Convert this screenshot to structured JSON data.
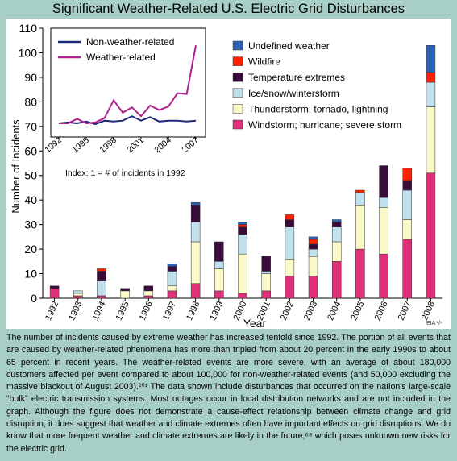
{
  "title": "Significant Weather-Related U.S. Electric Grid Disturbances",
  "caption": "The number of incidents caused by extreme weather has increased tenfold since 1992. The portion of all events that are caused by weather-related phenomena has more than tripled from about 20 percent in the early 1990s to about 65 percent in recent years. The weather-related events are more severe, with an average of about 180,000 customers affected per event compared to about 100,000 for non-weather-related events (and 50,000 excluding the massive blackout of August 2003).²⁰¹ The data shown include disturbances that occurred on the nation's large-scale “bulk” electric transmission systems. Most outages occur in local distribution networks and are not included in the graph. Although the figure does not demonstrate a cause-effect relationship between climate change and grid disruption, it does suggest that weather and climate extremes often have important effects on grid disruptions. We do know that more frequent weather and climate extremes are likely in the future,⁶⁸ which poses unknown new risks for the electric grid.",
  "chart_data": [
    {
      "type": "bar",
      "stacked": true,
      "title": "Significant Weather-Related U.S. Electric Grid Disturbances",
      "xlabel": "Year",
      "ylabel": "Number of Incidents",
      "ylim": [
        0,
        110
      ],
      "yticks": [
        "0",
        "10",
        "20",
        "30",
        "40",
        "50",
        "60",
        "70",
        "80",
        "90",
        "100",
        "110"
      ],
      "grid": false,
      "legend_position": "top-right",
      "categories": [
        "1992",
        "1993",
        "1994",
        "1995",
        "1996",
        "1997",
        "1998",
        "1999",
        "2000",
        "2001",
        "2002",
        "2003",
        "2004",
        "2005",
        "2006",
        "2007",
        "2008"
      ],
      "series": [
        {
          "name": "Windstorm; hurricane; severe storm",
          "color": "#e0307a",
          "values": [
            4,
            1,
            1,
            0,
            1,
            3,
            6,
            3,
            2,
            3,
            9,
            9,
            15,
            20,
            18,
            24,
            51
          ]
        },
        {
          "name": "Thunderstorm, tornado, lightning",
          "color": "#fafac8",
          "values": [
            0,
            1,
            0,
            3,
            2,
            2,
            17,
            9,
            16,
            7,
            7,
            8,
            8,
            18,
            19,
            8,
            27
          ]
        },
        {
          "name": "Ice/snow/winterstorm",
          "color": "#bfe0ec",
          "values": [
            0,
            1,
            6,
            0,
            0,
            6,
            8,
            3,
            8,
            1,
            13,
            3,
            6,
            5,
            4,
            12,
            10
          ]
        },
        {
          "name": "Temperature extremes",
          "color": "#3a0c3c",
          "values": [
            1,
            0,
            4,
            1,
            2,
            2,
            7,
            8,
            3,
            6,
            3,
            2,
            2,
            0,
            13,
            4,
            0
          ]
        },
        {
          "name": "Wildfire",
          "color": "#ff2000",
          "values": [
            0,
            0,
            1,
            0,
            0,
            0,
            0,
            0,
            1,
            0,
            2,
            2,
            0,
            1,
            0,
            5,
            4
          ]
        },
        {
          "name": "Undefined weather",
          "color": "#2a62b4",
          "values": [
            0,
            0,
            0,
            0,
            0,
            1,
            1,
            0,
            1,
            0,
            0,
            1,
            1,
            0,
            0,
            0,
            11
          ]
        }
      ],
      "annotation": "EIA ²/⁶"
    },
    {
      "type": "line",
      "inset": true,
      "x": [
        "1992",
        "1993",
        "1994",
        "1995",
        "1996",
        "1997",
        "1998",
        "1999",
        "2000",
        "2001",
        "2002",
        "2003",
        "2004",
        "2005",
        "2006",
        "2007"
      ],
      "xticks": [
        "1992",
        "1995",
        "1998",
        "2001",
        "2004",
        "2007"
      ],
      "xlabel": "Index: 1 = # of incidents in 1992",
      "legend_position": "top-left",
      "series": [
        {
          "name": "Non-weather-related",
          "color": "#1e2b7a",
          "values": [
            1.0,
            1.1,
            1.0,
            1.2,
            0.9,
            1.3,
            1.2,
            1.3,
            1.8,
            1.3,
            1.7,
            1.2,
            1.3,
            1.3,
            1.2,
            1.3
          ]
        },
        {
          "name": "Weather-related",
          "color": "#b0208e",
          "values": [
            1.0,
            1.0,
            1.5,
            1.0,
            1.1,
            1.6,
            3.6,
            2.2,
            2.8,
            1.8,
            3.0,
            2.5,
            2.9,
            4.4,
            4.3,
            9.8
          ]
        }
      ]
    }
  ]
}
